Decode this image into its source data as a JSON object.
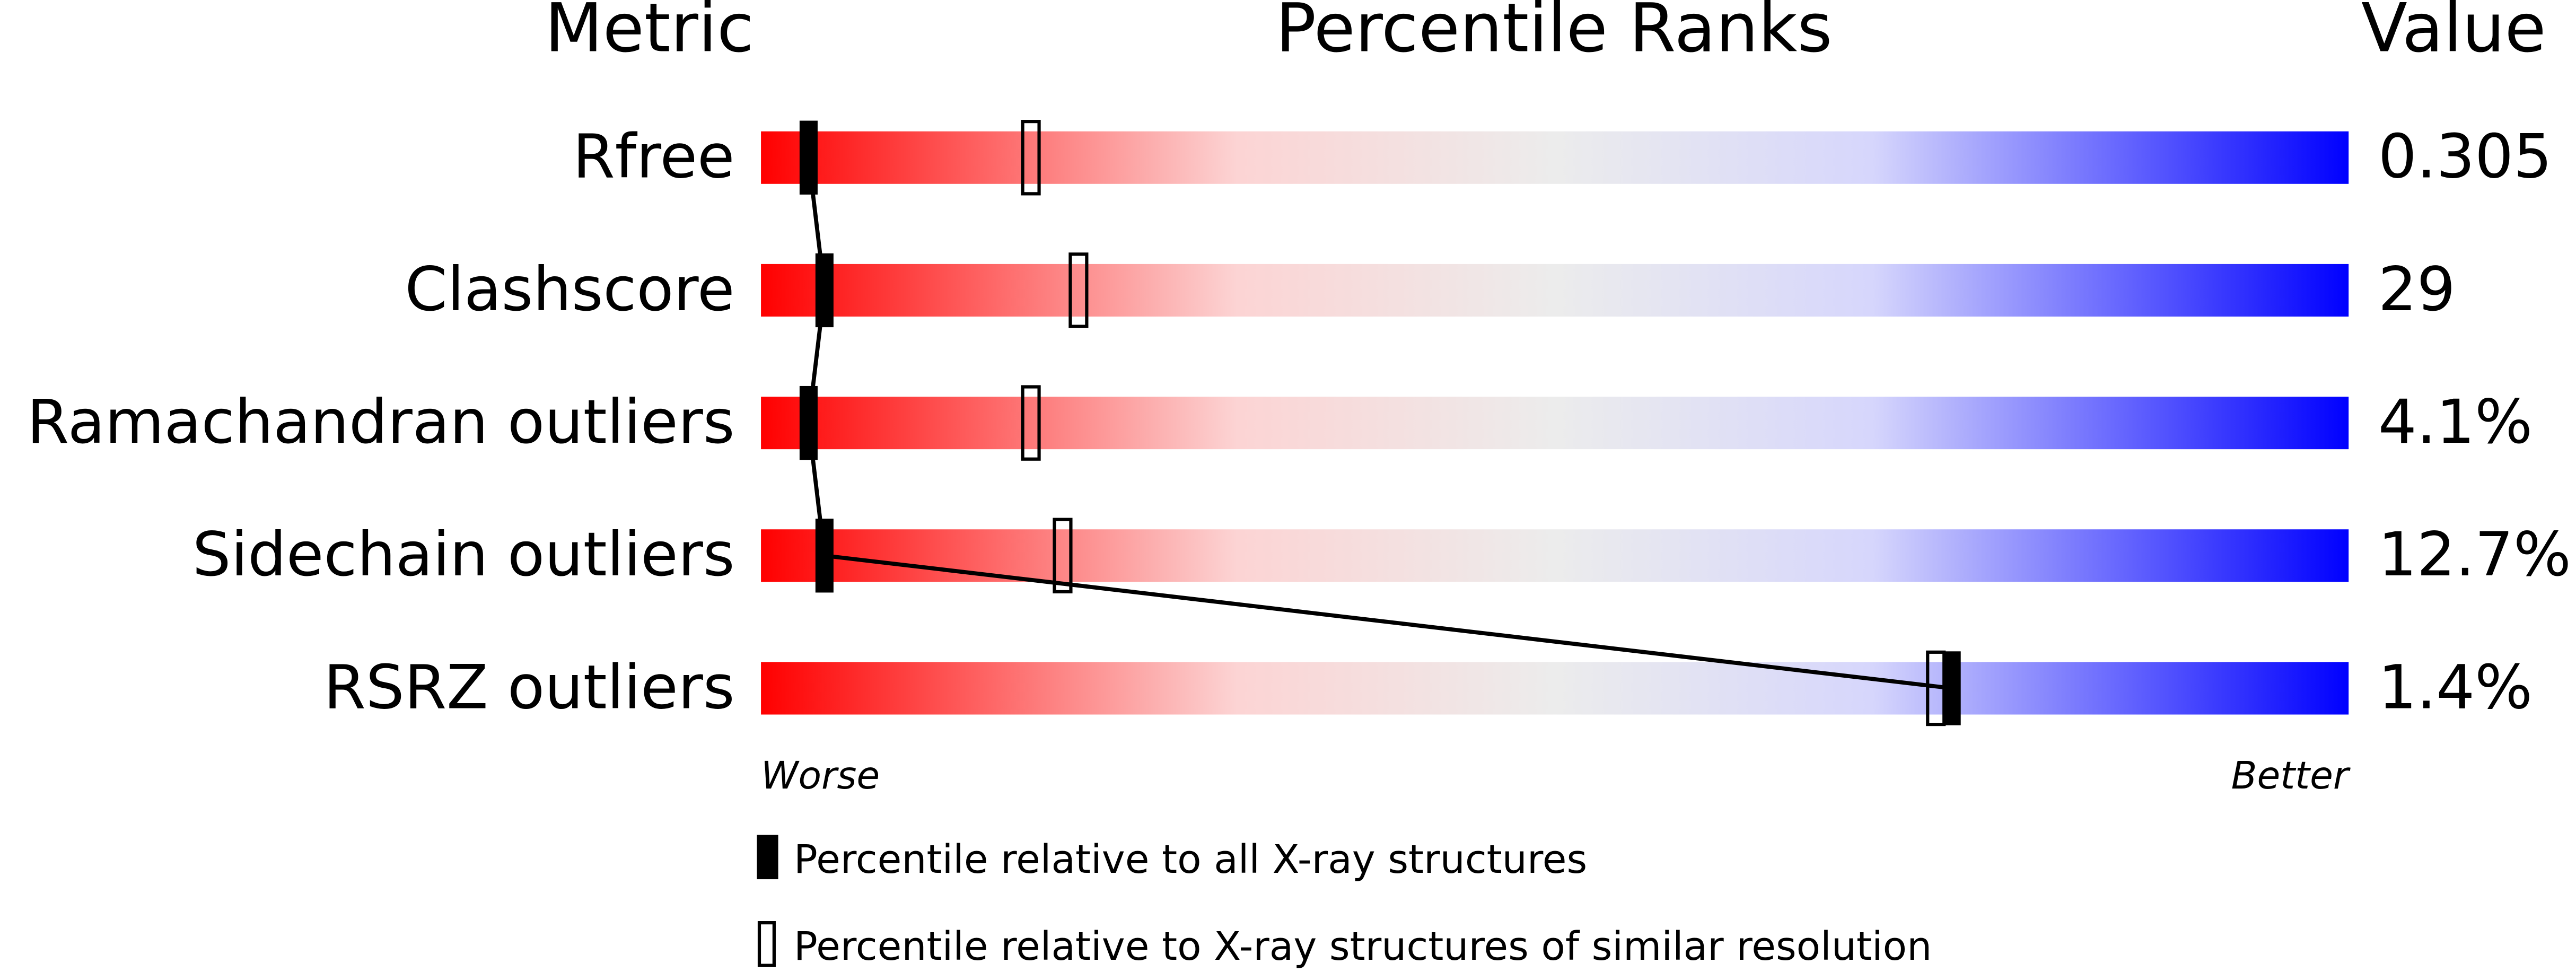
{
  "chart_data": {
    "type": "percentile",
    "title": "Percentile Ranks",
    "metric_header": "Metric",
    "value_header": "Value",
    "categories": [
      "Rfree",
      "Clashscore",
      "Ramachandran outliers",
      "Sidechain outliers",
      "RSRZ outliers"
    ],
    "metric_values": [
      "0.305",
      "29",
      "4.1%",
      "12.7%",
      "1.4%"
    ],
    "xlim": [
      0,
      100
    ],
    "x_low_label": "Worse",
    "x_high_label": "Better",
    "series": [
      {
        "name": "Percentile relative to all X-ray structures",
        "style": "filled",
        "values": [
          3,
          4,
          3,
          4,
          75
        ]
      },
      {
        "name": "Percentile relative to X-ray structures of similar resolution",
        "style": "open",
        "values": [
          17,
          20,
          17,
          19,
          74
        ]
      }
    ]
  }
}
